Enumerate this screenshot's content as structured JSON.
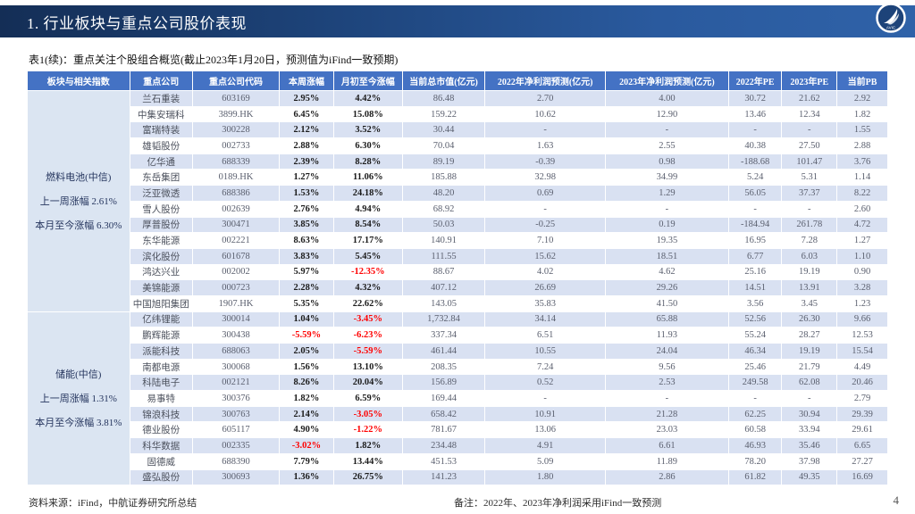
{
  "header": {
    "title": "1. 行业板块与重点公司股价表现",
    "logo_label": "AVIC"
  },
  "subtitle": "表1(续)：重点关注个股组合概览(截止2023年1月20日，预测值为iFind一致预期)",
  "colors": {
    "banner_navy": "#142e56",
    "banner_blue": "#2f62a8",
    "header_blue": "#4472c4",
    "row_stripe": "#d9e1f2",
    "sector_bg": "#dbe5f2",
    "negative_red": "#ff0000"
  },
  "table": {
    "columns": [
      "板块与相关指数",
      "重点公司",
      "重点公司代码",
      "本周涨幅",
      "月初至今涨幅",
      "当前总市值(亿元)",
      "2022年净利润预测(亿元)",
      "2023年净利润预测(亿元)",
      "2022年PE",
      "2023年PE",
      "当前PB"
    ],
    "column_keys": [
      "company",
      "code",
      "week_chg",
      "mtd_chg",
      "mkt_cap",
      "np_2022",
      "np_2023",
      "pe_2022",
      "pe_2023",
      "pb"
    ],
    "groups": [
      {
        "sector_lines": [
          "燃料电池(中信)",
          "上一周涨幅 2.61%",
          "本月至今涨幅 6.30%"
        ],
        "rows": [
          [
            "兰石重装",
            "603169",
            "2.95%",
            "4.42%",
            "86.48",
            "2.70",
            "4.00",
            "30.72",
            "21.62",
            "2.92"
          ],
          [
            "中集安瑞科",
            "3899.HK",
            "6.45%",
            "15.08%",
            "159.22",
            "10.62",
            "12.90",
            "13.46",
            "12.34",
            "1.82"
          ],
          [
            "富瑞特装",
            "300228",
            "2.12%",
            "3.52%",
            "30.44",
            "-",
            "-",
            "-",
            "-",
            "1.55"
          ],
          [
            "雄韬股份",
            "002733",
            "2.88%",
            "6.30%",
            "70.04",
            "1.63",
            "2.55",
            "40.38",
            "27.50",
            "2.88"
          ],
          [
            "亿华通",
            "688339",
            "2.39%",
            "8.28%",
            "89.19",
            "-0.39",
            "0.98",
            "-188.68",
            "101.47",
            "3.76"
          ],
          [
            "东岳集团",
            "0189.HK",
            "1.27%",
            "11.06%",
            "185.88",
            "32.98",
            "34.99",
            "5.24",
            "5.31",
            "1.14"
          ],
          [
            "泛亚微透",
            "688386",
            "1.53%",
            "24.18%",
            "48.20",
            "0.69",
            "1.29",
            "56.05",
            "37.37",
            "8.22"
          ],
          [
            "雪人股份",
            "002639",
            "2.76%",
            "4.94%",
            "68.92",
            "-",
            "-",
            "-",
            "-",
            "2.60"
          ],
          [
            "厚普股份",
            "300471",
            "3.85%",
            "8.54%",
            "50.03",
            "-0.25",
            "0.19",
            "-184.94",
            "261.78",
            "4.72"
          ],
          [
            "东华能源",
            "002221",
            "8.63%",
            "17.17%",
            "140.91",
            "7.10",
            "19.35",
            "16.95",
            "7.28",
            "1.27"
          ],
          [
            "滨化股份",
            "601678",
            "3.83%",
            "5.45%",
            "111.55",
            "15.62",
            "18.51",
            "6.77",
            "6.03",
            "1.10"
          ],
          [
            "鸿达兴业",
            "002002",
            "5.97%",
            "-12.35%",
            "88.67",
            "4.02",
            "4.62",
            "25.16",
            "19.19",
            "0.90"
          ],
          [
            "美锦能源",
            "000723",
            "2.28%",
            "4.32%",
            "407.12",
            "26.69",
            "29.26",
            "14.51",
            "13.91",
            "3.28"
          ],
          [
            "中国旭阳集团",
            "1907.HK",
            "5.35%",
            "22.62%",
            "143.05",
            "35.83",
            "41.50",
            "3.56",
            "3.45",
            "1.23"
          ]
        ]
      },
      {
        "sector_lines": [
          "储能(中信)",
          "上一周涨幅 1.31%",
          "本月至今涨幅 3.81%"
        ],
        "rows": [
          [
            "亿纬锂能",
            "300014",
            "1.04%",
            "-3.45%",
            "1,732.84",
            "34.14",
            "65.88",
            "52.56",
            "26.30",
            "9.66"
          ],
          [
            "鹏辉能源",
            "300438",
            "-5.59%",
            "-6.23%",
            "337.34",
            "6.51",
            "11.93",
            "55.24",
            "28.27",
            "12.53"
          ],
          [
            "派能科技",
            "688063",
            "2.05%",
            "-5.59%",
            "461.44",
            "10.55",
            "24.04",
            "46.34",
            "19.19",
            "15.54"
          ],
          [
            "南都电源",
            "300068",
            "1.56%",
            "13.10%",
            "208.35",
            "7.24",
            "9.56",
            "25.46",
            "21.79",
            "4.49"
          ],
          [
            "科陆电子",
            "002121",
            "8.26%",
            "20.04%",
            "156.89",
            "0.52",
            "2.53",
            "249.58",
            "62.08",
            "20.46"
          ],
          [
            "易事特",
            "300376",
            "1.82%",
            "6.59%",
            "169.44",
            "-",
            "-",
            "-",
            "-",
            "2.79"
          ],
          [
            "锦浪科技",
            "300763",
            "2.14%",
            "-3.05%",
            "658.42",
            "10.91",
            "21.28",
            "62.25",
            "30.94",
            "29.39"
          ],
          [
            "德业股份",
            "605117",
            "4.90%",
            "-1.22%",
            "781.67",
            "13.06",
            "23.03",
            "60.58",
            "33.94",
            "29.61"
          ],
          [
            "科华数据",
            "002335",
            "-3.02%",
            "1.82%",
            "234.48",
            "4.91",
            "6.61",
            "46.93",
            "35.46",
            "6.65"
          ],
          [
            "固德威",
            "688390",
            "7.79%",
            "13.44%",
            "451.53",
            "5.09",
            "11.89",
            "78.20",
            "37.98",
            "27.27"
          ],
          [
            "盛弘股份",
            "300693",
            "1.36%",
            "26.75%",
            "141.23",
            "1.80",
            "2.86",
            "61.82",
            "49.35",
            "16.69"
          ]
        ]
      }
    ]
  },
  "footer": {
    "source": "资料来源：iFind，中航证券研究所总结",
    "note": "备注：2022年、2023年净利润采用iFind一致预测",
    "page": "4"
  }
}
